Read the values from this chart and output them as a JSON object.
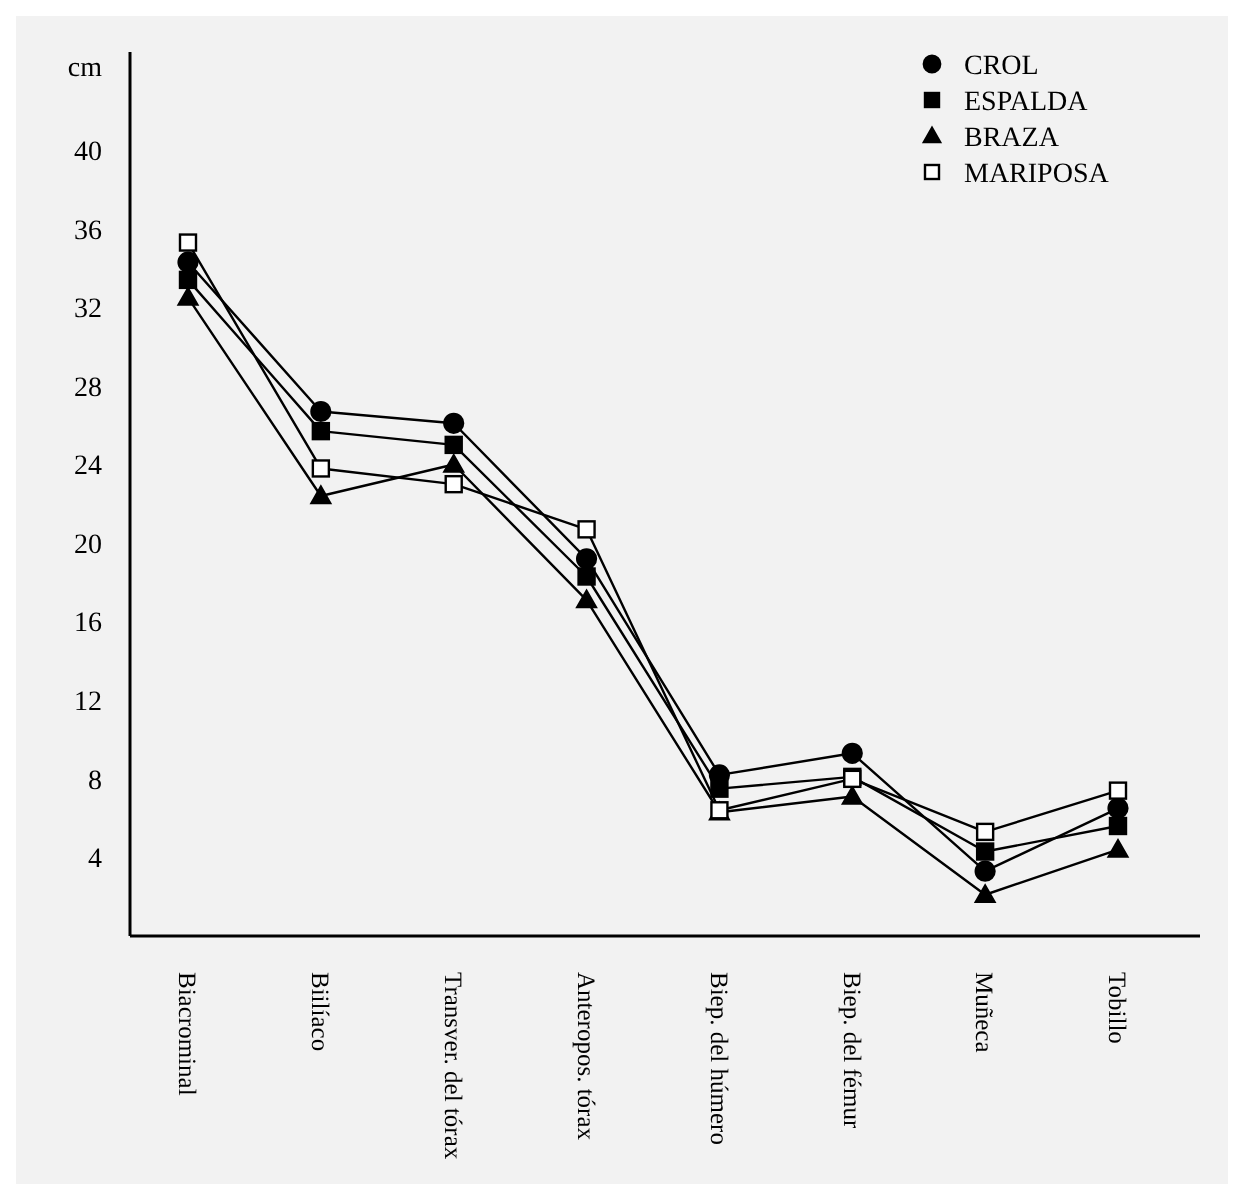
{
  "chart_data": {
    "type": "line",
    "ylabel": "cm",
    "categories": [
      "Biacrominal",
      "Biilíaco",
      "Transver. del tórax",
      "Anteropos. tórax",
      "Biep. del húmero",
      "Biep. del fémur",
      "Muñeca",
      "Tobillo"
    ],
    "ylim": [
      0,
      45
    ],
    "yticks": [
      4,
      8,
      12,
      16,
      20,
      24,
      28,
      32,
      36,
      40
    ],
    "grid": false,
    "legend": "top right",
    "line_style": "solid",
    "series": [
      {
        "name": "CROL",
        "color": "#000000",
        "marker": "circle",
        "values": [
          34.3,
          26.7,
          26.1,
          19.2,
          8.2,
          9.3,
          3.3,
          6.5
        ]
      },
      {
        "name": "ESPALDA",
        "color": "#000000",
        "marker": "square",
        "values": [
          33.4,
          25.7,
          25,
          18.3,
          7.5,
          8.1,
          4.3,
          5.6
        ]
      },
      {
        "name": "BRAZA",
        "color": "#000000",
        "marker": "triangle",
        "values": [
          32.5,
          22.4,
          24,
          17.1,
          6.3,
          7.1,
          2.1,
          4.4
        ]
      },
      {
        "name": "MARIPOSA",
        "color": "#000000",
        "marker": "square",
        "values": [
          35.3,
          23.8,
          23,
          20.7,
          6.4,
          8,
          5.3,
          7.4
        ]
      }
    ]
  }
}
